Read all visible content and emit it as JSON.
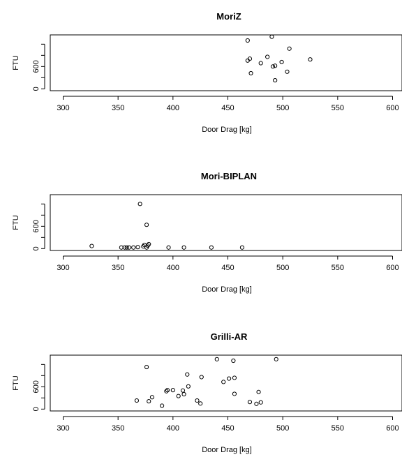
{
  "chart_data": [
    {
      "type": "scatter",
      "title": "MoriZ",
      "xlabel": "Door Drag [kg]",
      "ylabel": "FTU",
      "xlim": [
        290,
        610
      ],
      "ylim": [
        -50,
        1450
      ],
      "xticks": [
        300,
        350,
        400,
        450,
        500,
        550,
        600
      ],
      "yticks": [
        0,
        600
      ],
      "grid": false,
      "series": [
        {
          "x": [
            468,
            468,
            470,
            471,
            480,
            486,
            490,
            491,
            493,
            493,
            499,
            504,
            506,
            525
          ],
          "y": [
            1300,
            760,
            810,
            420,
            690,
            860,
            1400,
            600,
            230,
            620,
            720,
            460,
            1080,
            790
          ]
        }
      ]
    },
    {
      "type": "scatter",
      "title": "Mori-BIPLAN",
      "xlabel": "Door Drag [kg]",
      "ylabel": "FTU",
      "xlim": [
        290,
        610
      ],
      "ylim": [
        -50,
        1450
      ],
      "xticks": [
        300,
        350,
        400,
        450,
        500,
        550,
        600
      ],
      "yticks": [
        0,
        600
      ],
      "grid": false,
      "series": [
        {
          "x": [
            326,
            353,
            356,
            358,
            360,
            364,
            368,
            370,
            373,
            374,
            376,
            376,
            377,
            378,
            396,
            410,
            435,
            463
          ],
          "y": [
            70,
            30,
            30,
            30,
            30,
            30,
            40,
            1200,
            60,
            100,
            30,
            640,
            80,
            120,
            30,
            30,
            30,
            30
          ]
        }
      ]
    },
    {
      "type": "scatter",
      "title": "Grilli-AR",
      "xlabel": "Door Drag [kg]",
      "ylabel": "FTU",
      "xlim": [
        290,
        610
      ],
      "ylim": [
        -50,
        1450
      ],
      "xticks": [
        300,
        350,
        400,
        450,
        500,
        550,
        600
      ],
      "yticks": [
        0,
        600
      ],
      "grid": false,
      "series": [
        {
          "x": [
            367,
            376,
            378,
            381,
            390,
            394,
            395,
            400,
            405,
            409,
            410,
            413,
            414,
            422,
            425,
            426,
            440,
            446,
            451,
            455,
            456,
            456,
            470,
            476,
            478,
            480,
            494
          ],
          "y": [
            230,
            1130,
            210,
            320,
            90,
            480,
            510,
            510,
            350,
            500,
            400,
            930,
            610,
            230,
            150,
            860,
            1340,
            730,
            820,
            1300,
            840,
            410,
            190,
            140,
            460,
            180,
            1340
          ]
        }
      ]
    }
  ]
}
